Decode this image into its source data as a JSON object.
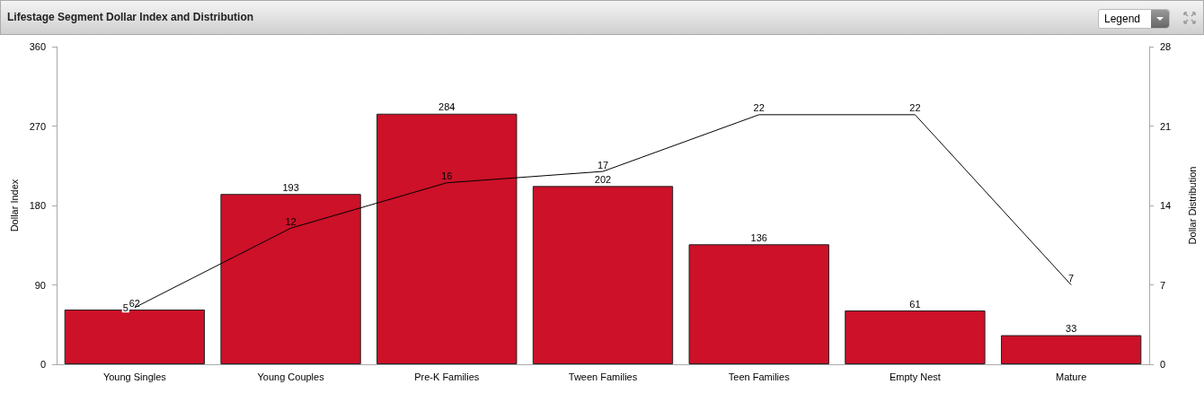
{
  "chart_data": {
    "type": "bar",
    "title": "Lifestage Segment Dollar Index and Distribution",
    "categories": [
      "Young Singles",
      "Young Couples",
      "Pre-K Families",
      "Tween Families",
      "Teen Families",
      "Empty Nest",
      "Mature"
    ],
    "series": [
      {
        "color": "#cc1128",
        "values": [
          62,
          193,
          284,
          202,
          136,
          61,
          33
        ]
      },
      {
        "type": "line",
        "axis": "y2",
        "color": "#000000",
        "values": [
          5,
          12,
          16,
          17,
          22,
          22,
          7
        ]
      }
    ],
    "ylabel": "Dollar Index",
    "y2label": "Dollar Distribution",
    "ylim": [
      0,
      360
    ],
    "yticks": [
      0,
      90,
      180,
      270,
      360
    ],
    "y2lim": [
      0,
      28
    ],
    "y2ticks": [
      0,
      7,
      14,
      21,
      28
    ],
    "data_labels": true,
    "grid": false,
    "marker": "none",
    "line_style": "solid",
    "annotations": [
      "Legend"
    ]
  }
}
